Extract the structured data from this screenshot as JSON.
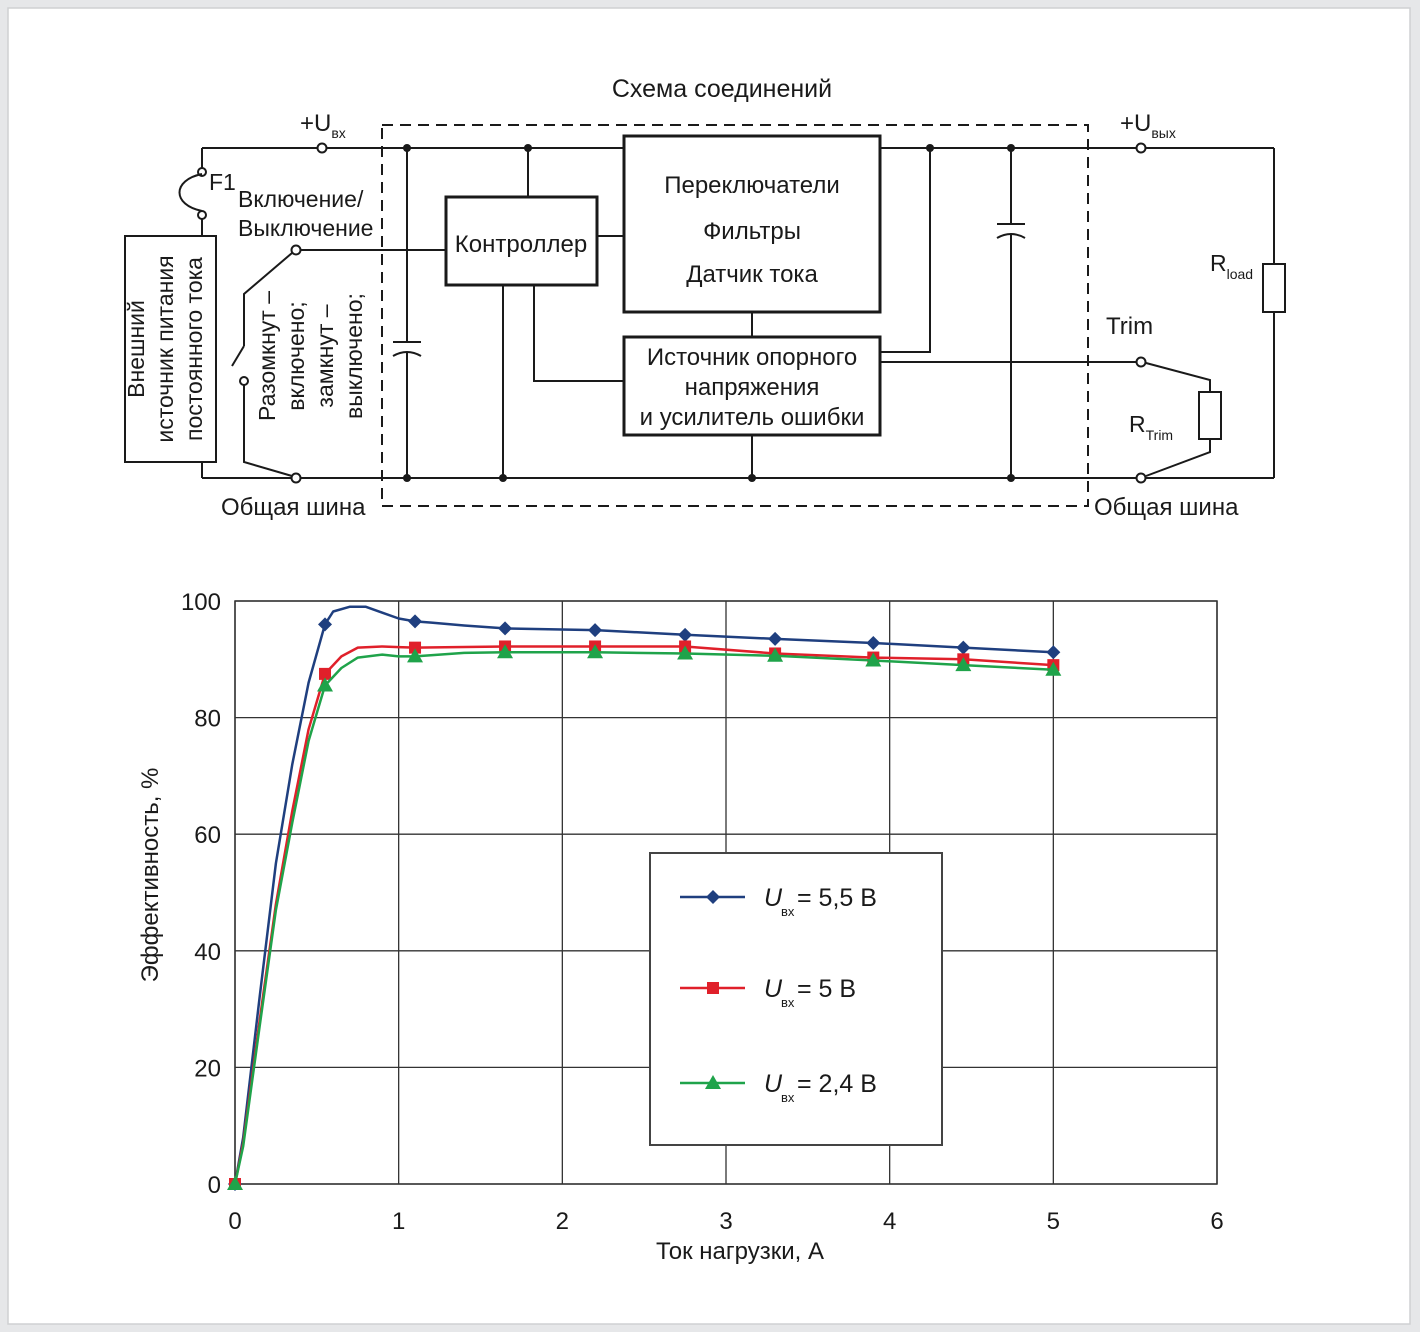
{
  "schematic": {
    "title": "Схема соединений",
    "vin_label": "+U",
    "vin_sub": "вх",
    "vout_label": "+U",
    "vout_sub": "вых",
    "fuse_label": "F1",
    "onoff_line1": "Включение/",
    "onoff_line2": "Выключение",
    "source_line1": "Внешний",
    "source_line2": "источник питания",
    "source_line3": "постоянного тока",
    "switch_line1": "Разомкнут –",
    "switch_line2": "включено;",
    "switch_line3": "замкнут –",
    "switch_line4": "выключено;",
    "controller_label": "Контроллер",
    "power_line1": "Переключатели",
    "power_line2": "Фильтры",
    "power_line3": "Датчик тока",
    "ref_line1": "Источник опорного",
    "ref_line2": "напряжения",
    "ref_line3": "и усилитель ошибки",
    "trim_label": "Trim",
    "rload_label": "R",
    "rload_sub": "load",
    "rtrim_label": "R",
    "rtrim_sub": "Trim",
    "gnd_left": "Общая шина",
    "gnd_right": "Общая шина"
  },
  "chart_data": {
    "type": "line",
    "xlabel": "Ток нагрузки, А",
    "ylabel": "Эффективность, %",
    "xlim": [
      0,
      6
    ],
    "ylim": [
      0,
      100
    ],
    "xticks": [
      0,
      1,
      2,
      3,
      4,
      5,
      6
    ],
    "yticks": [
      0,
      20,
      40,
      60,
      80,
      100
    ],
    "grid": true,
    "legend_position": "center-right",
    "series": [
      {
        "name_main": "U",
        "name_sub": "вх",
        "name_value": " = 5,5 В",
        "color": "#1f3f7f",
        "marker": "diamond",
        "markers": [
          [
            0,
            0
          ],
          [
            0.55,
            96
          ],
          [
            1.1,
            96.5
          ],
          [
            1.65,
            95.3
          ],
          [
            2.2,
            95
          ],
          [
            2.75,
            94.2
          ],
          [
            3.3,
            93.5
          ],
          [
            3.9,
            92.8
          ],
          [
            4.45,
            92
          ],
          [
            5,
            91.2
          ]
        ],
        "curve": [
          [
            0,
            0
          ],
          [
            0.05,
            8
          ],
          [
            0.15,
            32
          ],
          [
            0.25,
            55
          ],
          [
            0.35,
            72
          ],
          [
            0.45,
            86
          ],
          [
            0.55,
            96
          ],
          [
            0.6,
            98.2
          ],
          [
            0.7,
            99
          ],
          [
            0.8,
            99
          ],
          [
            0.9,
            98
          ],
          [
            1.0,
            97
          ],
          [
            1.1,
            96.5
          ],
          [
            1.2,
            96.3
          ],
          [
            1.4,
            95.8
          ],
          [
            1.65,
            95.3
          ],
          [
            2.2,
            95
          ],
          [
            2.75,
            94.2
          ],
          [
            3.3,
            93.5
          ],
          [
            3.9,
            92.8
          ],
          [
            4.45,
            92
          ],
          [
            5,
            91.2
          ]
        ]
      },
      {
        "name_main": "U",
        "name_sub": "вх",
        "name_value": " = 5 В",
        "color": "#e0202a",
        "marker": "square",
        "markers": [
          [
            0,
            0
          ],
          [
            0.55,
            87.5
          ],
          [
            1.1,
            92
          ],
          [
            1.65,
            92.2
          ],
          [
            2.2,
            92.2
          ],
          [
            2.75,
            92.2
          ],
          [
            3.3,
            91
          ],
          [
            3.9,
            90.3
          ],
          [
            4.45,
            90
          ],
          [
            5,
            89
          ]
        ],
        "curve": [
          [
            0,
            0
          ],
          [
            0.05,
            7
          ],
          [
            0.15,
            28
          ],
          [
            0.25,
            48
          ],
          [
            0.35,
            64
          ],
          [
            0.45,
            78
          ],
          [
            0.55,
            87.5
          ],
          [
            0.65,
            90.5
          ],
          [
            0.75,
            92
          ],
          [
            0.9,
            92.2
          ],
          [
            1.0,
            92.1
          ],
          [
            1.1,
            92
          ],
          [
            1.65,
            92.2
          ],
          [
            2.2,
            92.2
          ],
          [
            2.75,
            92.2
          ],
          [
            3.3,
            91
          ],
          [
            3.9,
            90.3
          ],
          [
            4.45,
            90
          ],
          [
            5,
            89
          ]
        ]
      },
      {
        "name_main": "U",
        "name_sub": "вх",
        "name_value": " = 2,4 В",
        "color": "#1fa34a",
        "marker": "triangle",
        "markers": [
          [
            0,
            0
          ],
          [
            0.55,
            85.5
          ],
          [
            1.1,
            90.5
          ],
          [
            1.65,
            91.2
          ],
          [
            2.2,
            91.2
          ],
          [
            2.75,
            91
          ],
          [
            3.3,
            90.6
          ],
          [
            3.9,
            89.8
          ],
          [
            4.45,
            89
          ],
          [
            5,
            88.2
          ]
        ],
        "curve": [
          [
            0,
            0
          ],
          [
            0.05,
            6.5
          ],
          [
            0.15,
            27
          ],
          [
            0.25,
            47
          ],
          [
            0.35,
            62
          ],
          [
            0.45,
            76
          ],
          [
            0.55,
            85.5
          ],
          [
            0.65,
            88.5
          ],
          [
            0.75,
            90.3
          ],
          [
            0.9,
            90.8
          ],
          [
            1.0,
            90.5
          ],
          [
            1.1,
            90.5
          ],
          [
            1.4,
            91.1
          ],
          [
            1.65,
            91.2
          ],
          [
            2.2,
            91.2
          ],
          [
            2.75,
            91
          ],
          [
            3.3,
            90.6
          ],
          [
            3.9,
            89.8
          ],
          [
            4.45,
            89
          ],
          [
            5,
            88.2
          ]
        ]
      }
    ]
  }
}
